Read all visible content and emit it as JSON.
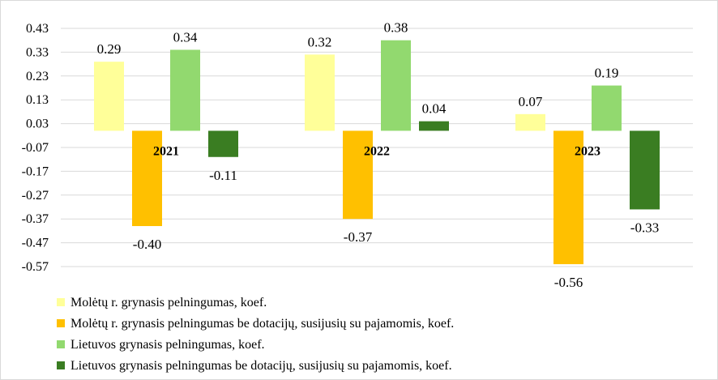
{
  "chart_data": {
    "type": "bar",
    "categories": [
      "2021",
      "2022",
      "2023"
    ],
    "series": [
      {
        "name": "Molėtų r. grynasis pelningumas, koef.",
        "values": [
          0.29,
          0.32,
          0.07
        ],
        "labels": [
          "0.29",
          "0.32",
          "0.07"
        ],
        "color": "#ffff99"
      },
      {
        "name": "Molėtų r. grynasis pelningumas be dotacijų, susijusių su pajamomis, koef.",
        "values": [
          -0.4,
          -0.37,
          -0.56
        ],
        "labels": [
          "-0.40",
          "-0.37",
          "-0.56"
        ],
        "color": "#ffc000"
      },
      {
        "name": "Lietuvos grynasis pelningumas, koef.",
        "values": [
          0.34,
          0.38,
          0.19
        ],
        "labels": [
          "0.34",
          "0.38",
          "0.19"
        ],
        "color": "#92d96f"
      },
      {
        "name": "Lietuvos grynasis pelningumas be dotacijų, susijusių su pajamomis, koef.",
        "values": [
          -0.11,
          0.04,
          -0.33
        ],
        "labels": [
          "-0.11",
          "0.04",
          "-0.33"
        ],
        "color": "#3a7d22"
      }
    ],
    "yticks": [
      "0.43",
      "0.33",
      "0.23",
      "0.13",
      "0.03",
      "-0.07",
      "-0.17",
      "-0.27",
      "-0.37",
      "-0.47",
      "-0.57"
    ],
    "ylim": [
      -0.57,
      0.43
    ],
    "grid": true,
    "legend_position": "bottom-left"
  }
}
